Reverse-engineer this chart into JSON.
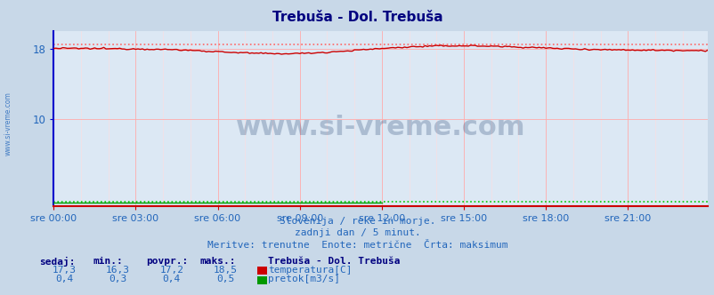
{
  "title": "Trebuša - Dol. Trebuša",
  "title_color": "#000080",
  "outer_bg_color": "#c8d8e8",
  "plot_bg_color": "#dce8f4",
  "grid_color_major": "#ffaaaa",
  "grid_color_minor": "#ffdddd",
  "ylim": [
    0,
    20
  ],
  "ytick_vals": [
    10,
    18
  ],
  "num_points": 288,
  "temp_min": 16.3,
  "temp_max": 18.5,
  "temp_avg": 17.2,
  "temp_current": 17.3,
  "flow_min": 0.3,
  "flow_max": 0.5,
  "flow_avg": 0.4,
  "flow_current": 0.4,
  "temp_color": "#cc0000",
  "flow_color": "#009900",
  "dotted_temp_color": "#ff6666",
  "dotted_flow_color": "#00cc00",
  "left_spine_color": "#0000cc",
  "bottom_spine_color": "#cc0000",
  "watermark": "www.si-vreme.com",
  "watermark_color": "#1a3a6a",
  "watermark_alpha": 0.25,
  "watermark_fontsize": 22,
  "footer_line1": "Slovenija / reke in morje.",
  "footer_line2": "zadnji dan / 5 minut.",
  "footer_line3": "Meritve: trenutne  Enote: metrične  Črta: maksimum",
  "footer_color": "#2266bb",
  "legend_title": "Trebuša - Dol. Trebuša",
  "legend_title_color": "#000080",
  "label_color": "#2266bb",
  "sidebar_text": "www.si-vreme.com",
  "sidebar_color": "#2266bb",
  "xtick_labels": [
    "sre 00:00",
    "sre 03:00",
    "sre 06:00",
    "sre 09:00",
    "sre 12:00",
    "sre 15:00",
    "sre 18:00",
    "sre 21:00"
  ],
  "xtick_positions": [
    0,
    36,
    72,
    108,
    144,
    180,
    216,
    252
  ],
  "headers": [
    "sedaj:",
    "min.:",
    "povpr.:",
    "maks.:"
  ],
  "vals_temp": [
    "17,3",
    "16,3",
    "17,2",
    "18,5"
  ],
  "vals_flow": [
    "0,4",
    "0,3",
    "0,4",
    "0,5"
  ],
  "label_temp": "temperatura[C]",
  "label_flow": "pretok[m3/s]"
}
